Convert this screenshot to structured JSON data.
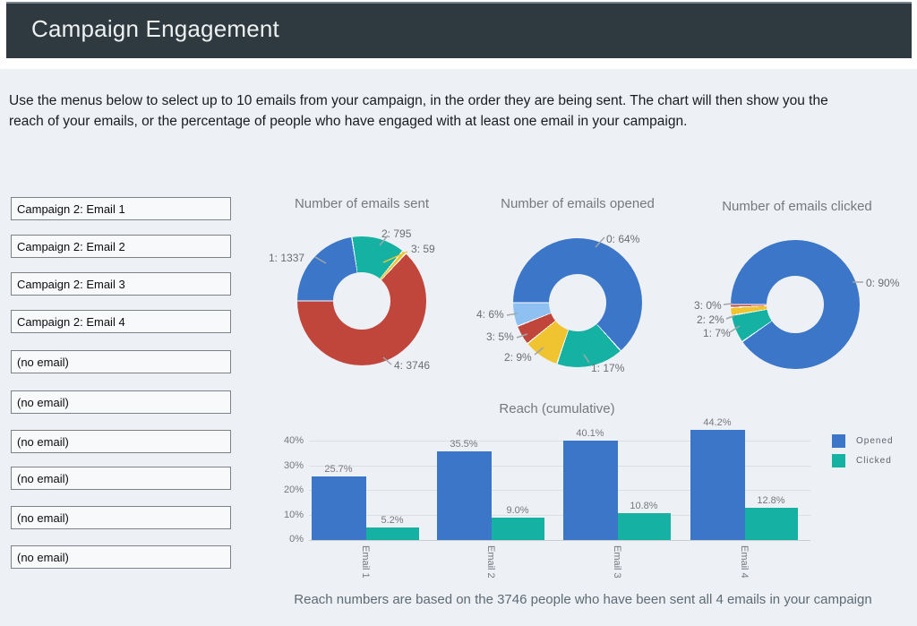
{
  "header": {
    "title": "Campaign Engagement"
  },
  "intro": {
    "line1": "Use the menus below to select up to 10 emails from your campaign, in the order they are being sent. The chart will then show you the",
    "line2": "reach of your emails, or the percentage of people who have engaged with at least one email in your campaign."
  },
  "selectors": {
    "items": [
      "Campaign 2: Email 1",
      "Campaign 2: Email 2",
      "Campaign 2: Email 3",
      "Campaign 2: Email 4",
      "(no email)",
      "(no email)",
      "(no email)",
      "(no email)",
      "(no email)",
      "(no email)"
    ]
  },
  "palette": {
    "blue": "#3b76c9",
    "teal": "#15b1a2",
    "yellow": "#f0c330",
    "red": "#c0463c",
    "lightBlue": "#8fc0f2",
    "gray": "#a2a6aa",
    "headerBg": "#2f3940",
    "contentBg": "#edf1f6"
  },
  "chart_data": [
    {
      "type": "pie",
      "title": "Number of emails sent",
      "labels": [
        "1: 1337",
        "2: 795",
        "3: 59",
        "4: 3746"
      ],
      "values": [
        1337,
        795,
        59,
        3746
      ],
      "colors": [
        "blue",
        "teal",
        "yellow",
        "red"
      ],
      "donut": true,
      "start_angle_deg": 270
    },
    {
      "type": "pie",
      "title": "Number of emails opened",
      "labels": [
        "0: 64%",
        "1: 17%",
        "2: 9%",
        "3: 5%",
        "4: 6%"
      ],
      "values": [
        64,
        17,
        9,
        5,
        6
      ],
      "colors": [
        "blue",
        "teal",
        "yellow",
        "red",
        "lightBlue"
      ],
      "donut": true,
      "start_angle_deg": 270
    },
    {
      "type": "pie",
      "title": "Number of emails clicked",
      "labels": [
        "0: 90%",
        "1: 7%",
        "2: 2%",
        "3: 0%"
      ],
      "values": [
        90,
        7,
        2,
        0.4
      ],
      "colors": [
        "blue",
        "teal",
        "yellow",
        "red"
      ],
      "donut": true,
      "start_angle_deg": 270
    },
    {
      "type": "bar",
      "title": "Reach (cumulative)",
      "categories": [
        "Email 1",
        "Email 2",
        "Email 3",
        "Email 4"
      ],
      "series": [
        {
          "name": "Opened",
          "values": [
            25.7,
            35.5,
            40.1,
            44.2
          ],
          "labels": [
            "25.7%",
            "35.5%",
            "40.1%",
            "44.2%"
          ],
          "color": "blue"
        },
        {
          "name": "Clicked",
          "values": [
            5.2,
            9.0,
            10.8,
            12.8
          ],
          "labels": [
            "5.2%",
            "9.0%",
            "10.8%",
            "12.8%"
          ],
          "color": "teal"
        }
      ],
      "y_ticks": [
        "40%",
        "30%",
        "20%",
        "10%",
        "0%"
      ],
      "ylim": [
        0,
        45
      ],
      "grid": true,
      "legend_position": "right"
    }
  ],
  "footer": {
    "text": "Reach numbers are based on the 3746 people who have been sent all 4 emails in your campaign"
  }
}
